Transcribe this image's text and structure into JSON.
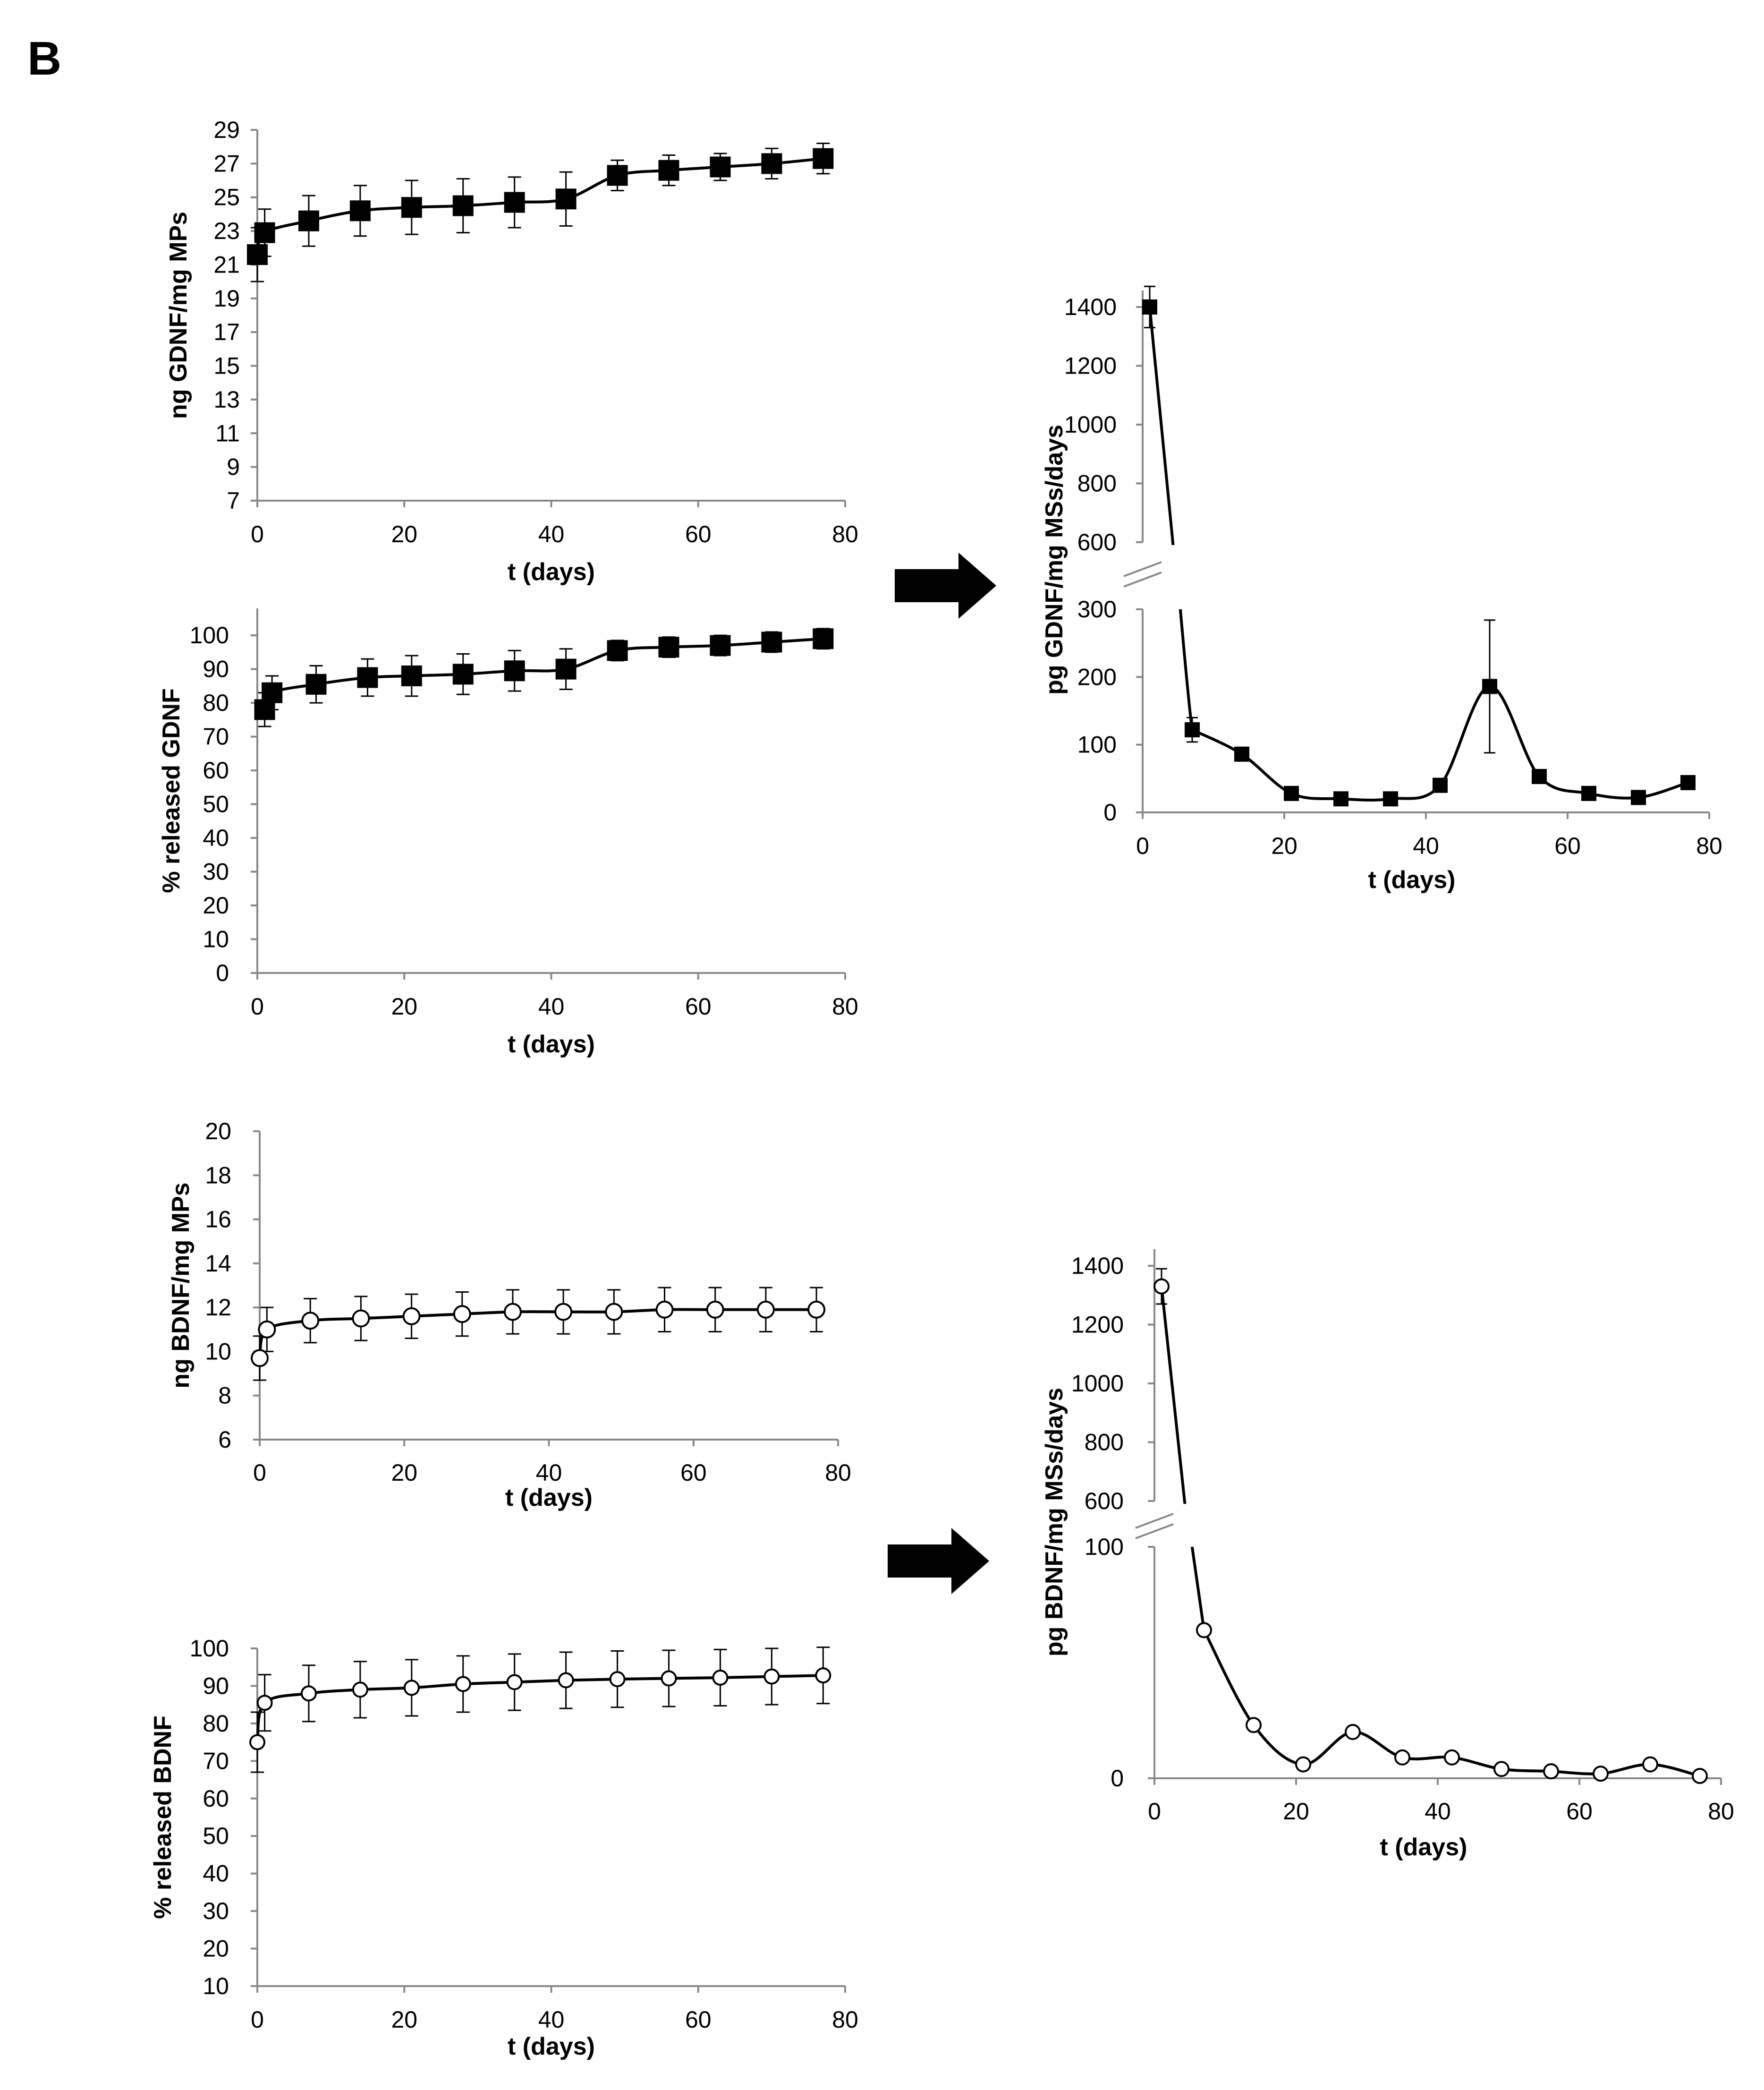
{
  "figure": {
    "panel_label": "B"
  },
  "chart_data": [
    {
      "id": "gdnf-loaded",
      "type": "line",
      "marker": "square",
      "marker_fill": "#000000",
      "xlabel": "t (days)",
      "ylabel": "ng GDNF/mg MPs",
      "xlim": [
        0,
        80
      ],
      "ylim": [
        7,
        29
      ],
      "xticks": [
        0,
        20,
        40,
        60,
        80
      ],
      "yticks": [
        7,
        9,
        11,
        13,
        15,
        17,
        19,
        21,
        23,
        25,
        27,
        29
      ],
      "x": [
        0,
        1,
        7,
        14,
        21,
        28,
        35,
        42,
        49,
        56,
        63,
        70,
        77
      ],
      "y": [
        21.6,
        22.9,
        23.6,
        24.2,
        24.4,
        24.5,
        24.7,
        24.9,
        26.3,
        26.6,
        26.8,
        27.0,
        27.3
      ],
      "err": [
        1.6,
        1.4,
        1.5,
        1.5,
        1.6,
        1.6,
        1.5,
        1.6,
        0.9,
        0.9,
        0.8,
        0.9,
        0.9
      ]
    },
    {
      "id": "gdnf-percent",
      "type": "line",
      "marker": "square",
      "marker_fill": "#000000",
      "xlabel": "t (days)",
      "ylabel": "% released GDNF",
      "xlim": [
        0,
        80
      ],
      "ylim": [
        0,
        108
      ],
      "xticks": [
        0,
        20,
        40,
        60,
        80
      ],
      "yticks": [
        0,
        10,
        20,
        30,
        40,
        50,
        60,
        70,
        80,
        90,
        100
      ],
      "x": [
        1,
        2,
        8,
        15,
        21,
        28,
        35,
        42,
        49,
        56,
        63,
        70,
        77
      ],
      "y": [
        78,
        83,
        85.5,
        87.5,
        88,
        88.5,
        89.5,
        90,
        95.5,
        96.5,
        97,
        98,
        99
      ],
      "err": [
        5,
        5,
        5.5,
        5.5,
        6,
        6,
        6,
        6,
        3,
        3,
        3,
        3,
        3
      ]
    },
    {
      "id": "gdnf-rate",
      "type": "line",
      "marker": "square",
      "marker_fill": "#000000",
      "xlabel": "t (days)",
      "ylabel": "pg GDNF/mg MSs/days",
      "xlim": [
        0,
        80
      ],
      "xticks": [
        0,
        20,
        40,
        60,
        80
      ],
      "broken_axis": true,
      "lower_ylim": [
        0,
        300
      ],
      "lower_yticks": [
        0,
        100,
        200,
        300
      ],
      "upper_ylim": [
        600,
        1400
      ],
      "upper_yticks": [
        600,
        800,
        1000,
        1200,
        1400
      ],
      "x": [
        1,
        7,
        14,
        21,
        28,
        35,
        42,
        49,
        56,
        63,
        70,
        77
      ],
      "y": [
        1400,
        122,
        86,
        28,
        20,
        20,
        40,
        186,
        53,
        28,
        22,
        44
      ],
      "err": [
        70,
        18,
        0,
        0,
        0,
        0,
        0,
        98,
        0,
        0,
        0,
        0
      ]
    },
    {
      "id": "bdnf-loaded",
      "type": "line",
      "marker": "circle",
      "marker_fill": "#ffffff",
      "xlabel": "t (days)",
      "ylabel": "ng BDNF/mg MPs",
      "xlim": [
        0,
        80
      ],
      "ylim": [
        6,
        20
      ],
      "xticks": [
        0,
        20,
        40,
        60,
        80
      ],
      "yticks": [
        6,
        8,
        10,
        12,
        14,
        16,
        18,
        20
      ],
      "x": [
        0,
        1,
        7,
        14,
        21,
        28,
        35,
        42,
        49,
        56,
        63,
        70,
        77
      ],
      "y": [
        9.7,
        11.0,
        11.4,
        11.5,
        11.6,
        11.7,
        11.8,
        11.8,
        11.8,
        11.9,
        11.9,
        11.9,
        11.9
      ],
      "err": [
        1.0,
        1.0,
        1.0,
        1.0,
        1.0,
        1.0,
        1.0,
        1.0,
        1.0,
        1.0,
        1.0,
        1.0,
        1.0
      ]
    },
    {
      "id": "bdnf-percent",
      "type": "line",
      "marker": "circle",
      "marker_fill": "#ffffff",
      "xlabel": "t (days)",
      "ylabel": "% released BDNF",
      "xlim": [
        0,
        80
      ],
      "ylim": [
        10,
        100
      ],
      "xticks": [
        0,
        20,
        40,
        60,
        80
      ],
      "yticks": [
        10,
        20,
        30,
        40,
        50,
        60,
        70,
        80,
        90,
        100
      ],
      "x": [
        0,
        1,
        7,
        14,
        21,
        28,
        35,
        42,
        49,
        56,
        63,
        70,
        77
      ],
      "y": [
        75,
        85.5,
        88,
        89,
        89.5,
        90.5,
        91,
        91.5,
        91.8,
        92,
        92.2,
        92.5,
        92.8
      ],
      "err": [
        8,
        7.5,
        7.5,
        7.5,
        7.5,
        7.5,
        7.5,
        7.5,
        7.5,
        7.5,
        7.5,
        7.5,
        7.5
      ]
    },
    {
      "id": "bdnf-rate",
      "type": "line",
      "marker": "circle",
      "marker_fill": "#ffffff",
      "xlabel": "t (days)",
      "ylabel": "pg BDNF/mg MSs/days",
      "xlim": [
        0,
        80
      ],
      "xticks": [
        0,
        20,
        40,
        60,
        80
      ],
      "broken_axis": true,
      "lower_ylim": [
        0,
        100
      ],
      "lower_yticks": [
        0,
        100
      ],
      "upper_ylim": [
        600,
        1400
      ],
      "upper_yticks": [
        600,
        800,
        1000,
        1200,
        1400
      ],
      "x": [
        1,
        7,
        14,
        21,
        28,
        35,
        42,
        49,
        56,
        63,
        70,
        77
      ],
      "y": [
        1330,
        64,
        23,
        6,
        20,
        9,
        9,
        4,
        3,
        2,
        6,
        1
      ],
      "err": [
        60,
        0,
        0,
        0,
        0,
        0,
        0,
        0,
        0,
        0,
        0,
        0
      ]
    }
  ]
}
